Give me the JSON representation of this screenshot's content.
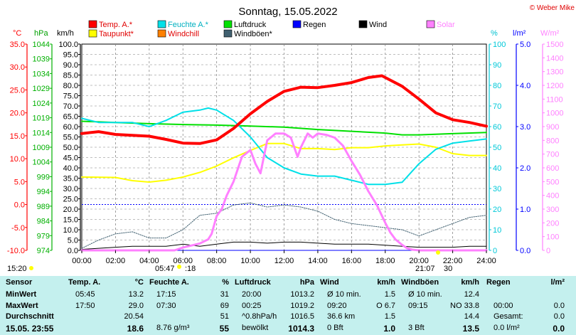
{
  "title": "Sonntag, 15.05.2022",
  "copyright": "© Weber Mike",
  "legend": [
    {
      "label": "Temp. A.*",
      "color": "#ff0000"
    },
    {
      "label": "Feuchte A.*",
      "color": "#00e0e8"
    },
    {
      "label": "Luftdruck",
      "color": "#00e000"
    },
    {
      "label": "Regen",
      "color": "#0000ff"
    },
    {
      "label": "Wind",
      "color": "#000000"
    },
    {
      "label": "Solar",
      "color": "#ff80ff"
    },
    {
      "label": "Taupunkt*",
      "color": "#ffff00"
    },
    {
      "label": "Windchill",
      "color": "#ff8000"
    },
    {
      "label": "Windböen*",
      "color": "#406070"
    }
  ],
  "axis_units": {
    "temp": "°C",
    "pressure": "hPa",
    "wind": "km/h",
    "humidity": "%",
    "rain": "l/m²",
    "solar": "W/m²"
  },
  "chart_data": {
    "type": "line",
    "x_ticks": [
      "00:00",
      "02:00",
      "04:00",
      "06:00",
      "08:00",
      "10:00",
      "12:00",
      "14:00",
      "16:00",
      "18:00",
      "20:00",
      "22:00",
      "24:00"
    ],
    "axes": {
      "temp_c": {
        "min": -10,
        "max": 35,
        "ticks": [
          "35.0",
          "30.0",
          "25.0",
          "20.0",
          "15.0",
          "10.0",
          "5.0",
          "0.0",
          "-5.0",
          "-10.0"
        ]
      },
      "pressure_hpa": {
        "min": 974,
        "max": 1044,
        "ticks": [
          "1044",
          "1039",
          "1034",
          "1029",
          "1024",
          "1019",
          "1014",
          "1009",
          "1004",
          "999",
          "994",
          "989",
          "984",
          "979",
          "974"
        ]
      },
      "wind_kmh": {
        "min": 0,
        "max": 100,
        "ticks": [
          "100.0",
          "95.0",
          "90.0",
          "85.0",
          "80.0",
          "75.0",
          "70.0",
          "65.0",
          "60.0",
          "55.0",
          "50.0",
          "45.0",
          "40.0",
          "35.0",
          "30.0",
          "25.0",
          "20.0",
          "15.0",
          "10.0",
          "5.0",
          "0.0"
        ]
      },
      "humidity_pct": {
        "min": 0,
        "max": 100,
        "ticks": [
          "100",
          "90",
          "80",
          "70",
          "60",
          "50",
          "40",
          "30",
          "20",
          "10",
          "0"
        ]
      },
      "rain_lm2": {
        "min": 0,
        "max": 5,
        "ticks": [
          "5.0",
          "4.0",
          "3.0",
          "2.0",
          "1.0",
          "0.0"
        ]
      },
      "solar_wm2": {
        "min": 0,
        "max": 1500,
        "ticks": [
          "1500",
          "1400",
          "1300",
          "1200",
          "1100",
          "1000",
          "900",
          "800",
          "700",
          "600",
          "500",
          "400",
          "300",
          "200",
          "100",
          "0"
        ]
      }
    },
    "series": [
      {
        "name": "Temp. A.*",
        "axis": "temp_c",
        "x": [
          0,
          1,
          2,
          3,
          4,
          5,
          6,
          7,
          8,
          9,
          10,
          11,
          12,
          13,
          14,
          15,
          16,
          17,
          17.8,
          18,
          19,
          20,
          21,
          22,
          23,
          24
        ],
        "y": [
          15.5,
          15.9,
          15.3,
          15.1,
          14.9,
          14.2,
          13.4,
          13.3,
          14.1,
          16.6,
          19.8,
          22.5,
          24.7,
          25.6,
          25.5,
          26.0,
          26.6,
          27.7,
          28.1,
          27.7,
          25.8,
          23.0,
          20.0,
          18.5,
          17.9,
          17.1
        ]
      },
      {
        "name": "Feuchte A.*",
        "axis": "humidity_pct",
        "x": [
          0,
          1,
          2,
          3,
          4,
          5,
          6,
          7,
          7.5,
          8,
          9,
          10,
          11,
          12,
          13,
          14,
          15,
          16,
          17,
          18,
          19,
          20,
          21,
          22,
          23,
          24
        ],
        "y": [
          64,
          62,
          62,
          62,
          60,
          63,
          67,
          68,
          69,
          68,
          63,
          55,
          45,
          40,
          37,
          36,
          36,
          34,
          32,
          32,
          33,
          42,
          49,
          52,
          53,
          54
        ]
      },
      {
        "name": "Luftdruck",
        "axis": "pressure_hpa",
        "x": [
          0,
          2,
          4,
          6,
          8,
          10,
          12,
          14,
          16,
          18,
          19,
          20,
          22,
          24
        ],
        "y": [
          1017.8,
          1017.4,
          1017.0,
          1016.7,
          1016.5,
          1016.2,
          1015.8,
          1015.0,
          1014.4,
          1013.8,
          1013.2,
          1013.2,
          1013.6,
          1014.0
        ]
      },
      {
        "name": "Taupunkt*",
        "axis": "temp_c",
        "x": [
          0,
          2,
          3,
          4,
          5,
          6,
          7,
          8,
          9,
          10,
          11,
          12,
          13,
          14,
          15,
          16,
          17,
          18,
          19,
          20,
          21,
          22,
          23,
          24
        ],
        "y": [
          6.0,
          5.9,
          5.2,
          4.9,
          5.3,
          6.0,
          7.0,
          8.4,
          10.2,
          11.8,
          13.3,
          13.3,
          12.2,
          12.2,
          12.0,
          12.4,
          12.4,
          12.8,
          13.0,
          13.2,
          12.5,
          11.1,
          10.7,
          10.7
        ]
      },
      {
        "name": "Windchill",
        "axis": "temp_c",
        "x": [
          0,
          1,
          2,
          3,
          4,
          5,
          6,
          7,
          8,
          9,
          10,
          11,
          12,
          13,
          14,
          15,
          16,
          17,
          17.8,
          18,
          19,
          20,
          21,
          22,
          23,
          24
        ],
        "y": [
          15.5,
          15.9,
          15.3,
          15.1,
          14.9,
          14.2,
          13.4,
          13.3,
          14.1,
          16.6,
          19.8,
          22.5,
          24.7,
          25.6,
          25.5,
          26.0,
          26.6,
          27.7,
          28.1,
          27.7,
          25.8,
          23.0,
          20.0,
          18.5,
          17.9,
          17.1
        ]
      },
      {
        "name": "Solar",
        "axis": "solar_wm2",
        "x": [
          0,
          5.5,
          6,
          7,
          7.5,
          7.7,
          8,
          8.3,
          8.6,
          9,
          9.5,
          10,
          10.3,
          10.6,
          11,
          11.5,
          12,
          12.4,
          12.8,
          13,
          13.4,
          13.7,
          14,
          14.5,
          15,
          15.5,
          16,
          16.5,
          17,
          17.5,
          18,
          18.3,
          18.6,
          19,
          19.3,
          19.6,
          20,
          20.5,
          21,
          24
        ],
        "y": [
          0,
          0,
          20,
          50,
          80,
          120,
          250,
          300,
          400,
          500,
          680,
          730,
          630,
          560,
          800,
          850,
          850,
          820,
          680,
          750,
          850,
          820,
          850,
          840,
          820,
          760,
          650,
          550,
          430,
          330,
          200,
          130,
          80,
          40,
          15,
          5,
          0,
          0,
          0,
          0
        ]
      },
      {
        "name": "Wind",
        "axis": "wind_kmh",
        "x": [
          0,
          1,
          2,
          3,
          4,
          5,
          6,
          7,
          8,
          9,
          10,
          11,
          12,
          13,
          14,
          15,
          16,
          17,
          18,
          19,
          20,
          21,
          22,
          23,
          24
        ],
        "y": [
          0.5,
          1,
          1.5,
          2,
          2,
          2,
          3,
          2,
          3,
          4,
          4,
          3.5,
          4,
          4,
          3.5,
          3,
          3,
          3,
          2.5,
          2,
          1.5,
          1.5,
          1.5,
          2,
          2
        ]
      },
      {
        "name": "Windböen*",
        "axis": "wind_kmh",
        "x": [
          0,
          1,
          2,
          3,
          4,
          5,
          6,
          7,
          8,
          9,
          10,
          11,
          12,
          13,
          14,
          15,
          16,
          17,
          18,
          19,
          20,
          21,
          22,
          23,
          24
        ],
        "y": [
          1,
          5,
          8,
          9,
          6,
          6,
          10,
          17,
          18,
          22,
          23,
          21,
          22,
          21,
          19,
          15,
          13,
          12,
          11,
          10,
          7,
          10,
          13,
          16,
          17
        ]
      },
      {
        "name": "Regen",
        "axis": "rain_lm2",
        "x": [
          0,
          24
        ],
        "y": [
          0,
          0
        ]
      }
    ],
    "reference_line": {
      "axis": "temp_c",
      "value": 0.0,
      "style": "dashed",
      "color": "#0000ff"
    },
    "grid": true
  },
  "sun_info": {
    "sunrise": "05:47",
    "sunset": "21:07",
    "moon_left": ":18",
    "moon_right": "30",
    "left_marker": "15:20"
  },
  "table": {
    "sensor": {
      "header": "Sensor",
      "rows": [
        "MinWert",
        "MaxWert",
        "Durchschnitt",
        "15.05.  23:55"
      ]
    },
    "temp": {
      "header": "Temp. A.",
      "unit": "°C",
      "rows": [
        [
          "05:45",
          "13.2"
        ],
        [
          "17:50",
          "29.0"
        ],
        [
          "",
          "20.54"
        ],
        [
          "",
          "18.6"
        ]
      ]
    },
    "humidity": {
      "header": "Feuchte A.",
      "unit": "%",
      "rows": [
        [
          "17:15",
          "31"
        ],
        [
          "07:30",
          "69"
        ],
        [
          "",
          "51"
        ],
        [
          "8.76 g/m³",
          "55"
        ]
      ]
    },
    "pressure": {
      "header": "Luftdruck",
      "unit": "hPa",
      "rows": [
        [
          "20:00",
          "1013.2"
        ],
        [
          "00:25",
          "1019.2"
        ],
        [
          "^0.8hPa/h",
          "1016.5"
        ],
        [
          "bewölkt",
          "1014.3"
        ]
      ]
    },
    "wind": {
      "header": "Wind",
      "unit": "km/h",
      "rows": [
        [
          "Ø 10 min.",
          "1.5"
        ],
        [
          "09:20",
          "O 6.7"
        ],
        [
          "36.6 km",
          "1.5"
        ],
        [
          "0 Bft",
          "1.0"
        ]
      ]
    },
    "gusts": {
      "header": "Windböen",
      "unit": "km/h",
      "rows": [
        [
          "Ø 10 min.",
          "12.4"
        ],
        [
          "09:15",
          "NO 33.8"
        ],
        [
          "",
          "14.4"
        ],
        [
          "3 Bft",
          "13.5"
        ]
      ]
    },
    "rain": {
      "header": "Regen",
      "unit": "l/m²",
      "rows": [
        [
          "",
          ""
        ],
        [
          "00:00",
          "0.0"
        ],
        [
          "Gesamt:",
          "0.0"
        ],
        [
          "0.0 l/m²",
          "0.0"
        ]
      ]
    }
  }
}
